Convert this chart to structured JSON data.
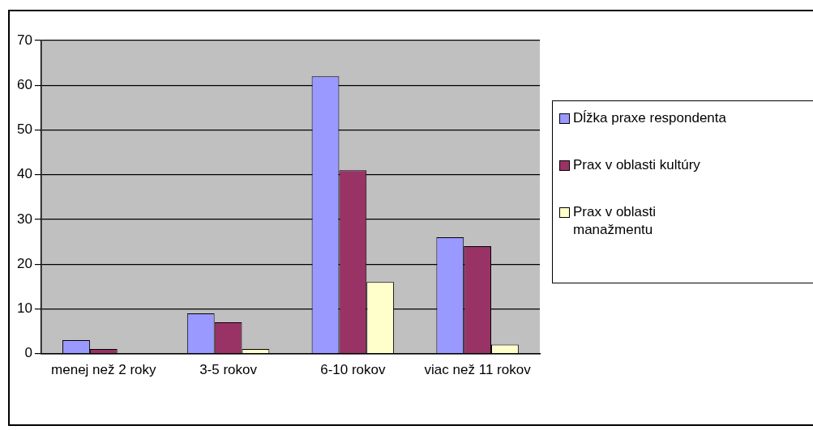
{
  "chart_data": {
    "type": "bar",
    "categories": [
      "menej než 2 roky",
      "3-5 rokov",
      "6-10 rokov",
      "viac než 11 rokov"
    ],
    "series": [
      {
        "name": "Dĺžka praxe respondenta",
        "color": "#9999ff",
        "values": [
          3,
          9,
          62,
          26
        ]
      },
      {
        "name": "Prax v oblasti kultúry",
        "color": "#993366",
        "values": [
          1,
          7,
          41,
          24
        ]
      },
      {
        "name": "Prax v oblasti manažmentu",
        "color": "#ffffcc",
        "values": [
          0,
          1,
          16,
          2
        ]
      }
    ],
    "ylim": [
      0,
      70
    ],
    "yticks": [
      0,
      10,
      20,
      30,
      40,
      50,
      60,
      70
    ],
    "grid": "y",
    "legend": "right"
  }
}
